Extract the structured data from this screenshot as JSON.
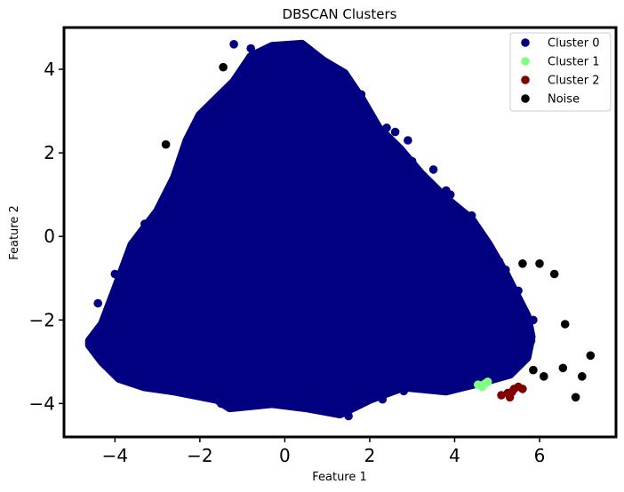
{
  "chart_data": {
    "type": "scatter",
    "title": "DBSCAN Clusters",
    "xlabel": "Feature 1",
    "ylabel": "Feature 2",
    "xlim": [
      -5.2,
      7.8
    ],
    "ylim": [
      -4.8,
      5.0
    ],
    "xticks": [
      -4,
      -2,
      0,
      2,
      4,
      6
    ],
    "yticks": [
      -4,
      -2,
      0,
      2,
      4
    ],
    "grid": false,
    "legend_position": "top-right",
    "series": [
      {
        "name": "Cluster 0",
        "color": "#000080",
        "shape": "triangular dense cloud",
        "outline": [
          [
            -4.6,
            -2.5
          ],
          [
            -4.3,
            -2.1
          ],
          [
            -4.0,
            -1.3
          ],
          [
            -3.6,
            -0.2
          ],
          [
            -3.0,
            0.6
          ],
          [
            -2.6,
            1.4
          ],
          [
            -2.3,
            2.3
          ],
          [
            -2.0,
            2.9
          ],
          [
            -1.6,
            3.3
          ],
          [
            -1.2,
            3.7
          ],
          [
            -0.8,
            4.3
          ],
          [
            -0.3,
            4.55
          ],
          [
            0.4,
            4.6
          ],
          [
            0.9,
            4.2
          ],
          [
            1.4,
            3.9
          ],
          [
            1.8,
            3.3
          ],
          [
            2.2,
            2.6
          ],
          [
            2.7,
            2.1
          ],
          [
            3.2,
            1.5
          ],
          [
            3.8,
            0.9
          ],
          [
            4.4,
            0.4
          ],
          [
            4.8,
            -0.2
          ],
          [
            5.2,
            -0.9
          ],
          [
            5.5,
            -1.5
          ],
          [
            5.7,
            -1.9
          ],
          [
            5.8,
            -2.4
          ],
          [
            5.7,
            -2.9
          ],
          [
            5.3,
            -3.3
          ],
          [
            4.6,
            -3.5
          ],
          [
            3.8,
            -3.7
          ],
          [
            2.8,
            -3.6
          ],
          [
            2.0,
            -3.9
          ],
          [
            1.3,
            -4.25
          ],
          [
            0.5,
            -4.1
          ],
          [
            -0.3,
            -4.0
          ],
          [
            -1.3,
            -4.1
          ],
          [
            -1.6,
            -3.9
          ],
          [
            -2.6,
            -3.7
          ],
          [
            -3.3,
            -3.6
          ],
          [
            -3.9,
            -3.4
          ],
          [
            -4.3,
            -3.0
          ],
          [
            -4.6,
            -2.6
          ]
        ],
        "points": [
          [
            -1.2,
            4.6
          ],
          [
            -0.8,
            4.5
          ],
          [
            0.0,
            4.3
          ],
          [
            0.4,
            4.6
          ],
          [
            -0.3,
            4.4
          ],
          [
            1.1,
            3.9
          ],
          [
            1.4,
            3.8
          ],
          [
            2.4,
            2.6
          ],
          [
            2.9,
            2.3
          ],
          [
            3.0,
            1.8
          ],
          [
            3.5,
            1.6
          ],
          [
            3.8,
            1.1
          ],
          [
            4.4,
            0.5
          ],
          [
            4.5,
            0.2
          ],
          [
            4.7,
            -0.1
          ],
          [
            5.2,
            -0.8
          ],
          [
            5.5,
            -1.3
          ],
          [
            5.7,
            -1.9
          ],
          [
            5.85,
            -2.0
          ],
          [
            5.8,
            -2.5
          ],
          [
            5.6,
            -2.8
          ],
          [
            5.3,
            -3.2
          ],
          [
            4.8,
            -3.4
          ],
          [
            4.2,
            -3.6
          ],
          [
            3.6,
            -3.5
          ],
          [
            2.8,
            -3.7
          ],
          [
            2.3,
            -3.9
          ],
          [
            1.6,
            -4.1
          ],
          [
            1.5,
            -4.3
          ],
          [
            1.2,
            -4.2
          ],
          [
            0.8,
            -4.05
          ],
          [
            0.2,
            -4.0
          ],
          [
            -0.6,
            -3.9
          ],
          [
            -1.3,
            -4.1
          ],
          [
            -1.5,
            -4.0
          ],
          [
            -2.4,
            -3.6
          ],
          [
            -3.4,
            -3.5
          ],
          [
            -4.0,
            -3.3
          ],
          [
            -4.3,
            -2.8
          ],
          [
            -4.5,
            -2.55
          ],
          [
            -4.4,
            -1.6
          ],
          [
            -4.0,
            -0.9
          ],
          [
            -3.7,
            -0.5
          ],
          [
            -3.3,
            0.3
          ],
          [
            -2.8,
            0.9
          ],
          [
            -2.6,
            1.3
          ],
          [
            -2.4,
            1.8
          ],
          [
            -2.2,
            2.5
          ],
          [
            -1.9,
            2.9
          ],
          [
            -1.4,
            3.4
          ],
          [
            -1.0,
            3.9
          ],
          [
            1.8,
            3.4
          ],
          [
            2.6,
            2.5
          ],
          [
            3.9,
            1.0
          ],
          [
            5.05,
            -0.6
          ],
          [
            4.9,
            -3.0
          ],
          [
            3.1,
            -3.3
          ],
          [
            -2.9,
            -3.4
          ],
          [
            -3.8,
            -2.2
          ],
          [
            -3.5,
            -1.0
          ]
        ]
      },
      {
        "name": "Cluster 1",
        "color": "#80ff80",
        "points": [
          [
            4.55,
            -3.55
          ],
          [
            4.65,
            -3.6
          ],
          [
            4.72,
            -3.52
          ],
          [
            4.78,
            -3.48
          ],
          [
            4.62,
            -3.57
          ]
        ]
      },
      {
        "name": "Cluster 2",
        "color": "#800000",
        "points": [
          [
            5.1,
            -3.8
          ],
          [
            5.25,
            -3.75
          ],
          [
            5.3,
            -3.85
          ],
          [
            5.4,
            -3.65
          ],
          [
            5.5,
            -3.6
          ],
          [
            5.6,
            -3.65
          ],
          [
            5.35,
            -3.72
          ]
        ]
      },
      {
        "name": "Noise",
        "color": "#000000",
        "points": [
          [
            -1.45,
            4.05
          ],
          [
            -2.8,
            2.2
          ],
          [
            5.6,
            -0.65
          ],
          [
            6.0,
            -0.65
          ],
          [
            6.35,
            -0.9
          ],
          [
            6.6,
            -2.1
          ],
          [
            5.85,
            -3.2
          ],
          [
            6.1,
            -3.35
          ],
          [
            6.55,
            -3.15
          ],
          [
            6.85,
            -3.85
          ],
          [
            7.0,
            -3.35
          ],
          [
            7.2,
            -2.85
          ]
        ]
      }
    ]
  }
}
